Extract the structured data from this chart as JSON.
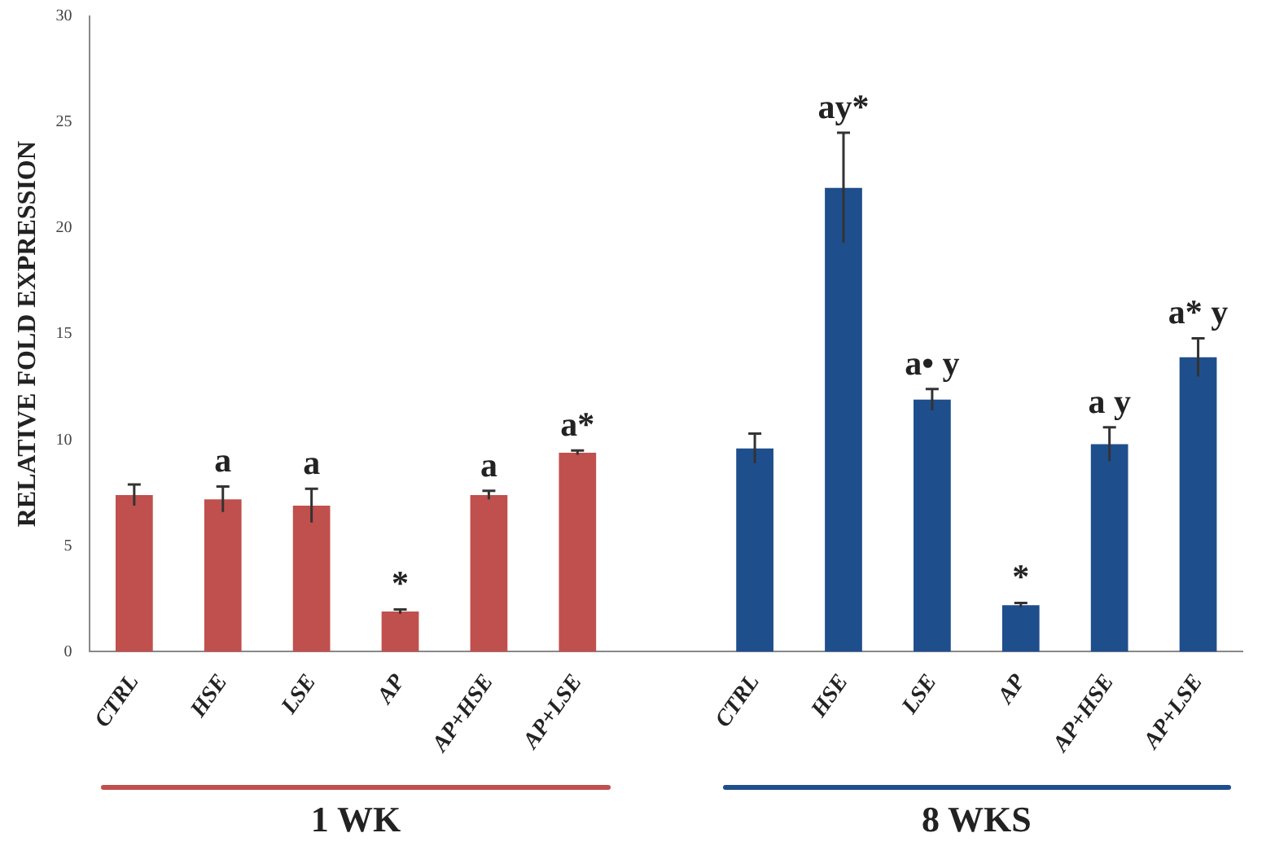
{
  "chart_data": {
    "type": "bar",
    "ylabel": "RELATIVE FOLD EXPRESSION",
    "categories": [
      "CTRL",
      "HSE",
      "LSE",
      "AP",
      "AP+HSE",
      "AP+LSE",
      null,
      "CTRL",
      "HSE",
      "LSE",
      "AP",
      "AP+HSE",
      "AP+LSE"
    ],
    "series": [
      {
        "color": "#c0504d",
        "values": [
          7.4,
          7.2,
          6.9,
          1.9,
          7.4,
          9.4,
          null,
          null,
          null,
          null,
          null,
          null,
          null
        ],
        "errors": [
          0.5,
          0.6,
          0.8,
          0.1,
          0.2,
          0.1,
          null,
          null,
          null,
          null,
          null,
          null,
          null
        ],
        "value_labels": [
          null,
          "a",
          "a",
          "*",
          "a",
          "a*",
          null,
          null,
          null,
          null,
          null,
          null,
          null
        ]
      },
      {
        "color": "#1f4e8c",
        "values": [
          null,
          null,
          null,
          null,
          null,
          null,
          null,
          9.6,
          21.9,
          11.9,
          2.2,
          9.8,
          13.9
        ],
        "errors": [
          null,
          null,
          null,
          null,
          null,
          null,
          null,
          0.7,
          2.6,
          0.5,
          0.1,
          0.8,
          0.9
        ],
        "value_labels": [
          null,
          null,
          null,
          null,
          null,
          null,
          null,
          null,
          "ay*",
          "a• y",
          "*",
          "a y",
          "a* y"
        ]
      }
    ],
    "annotations": [
      "1 WK",
      "8 WKS"
    ],
    "ylim": [
      0,
      30
    ],
    "yticks": [
      0,
      5,
      10,
      15,
      20,
      25,
      30
    ],
    "grid": false,
    "legend": false
  }
}
